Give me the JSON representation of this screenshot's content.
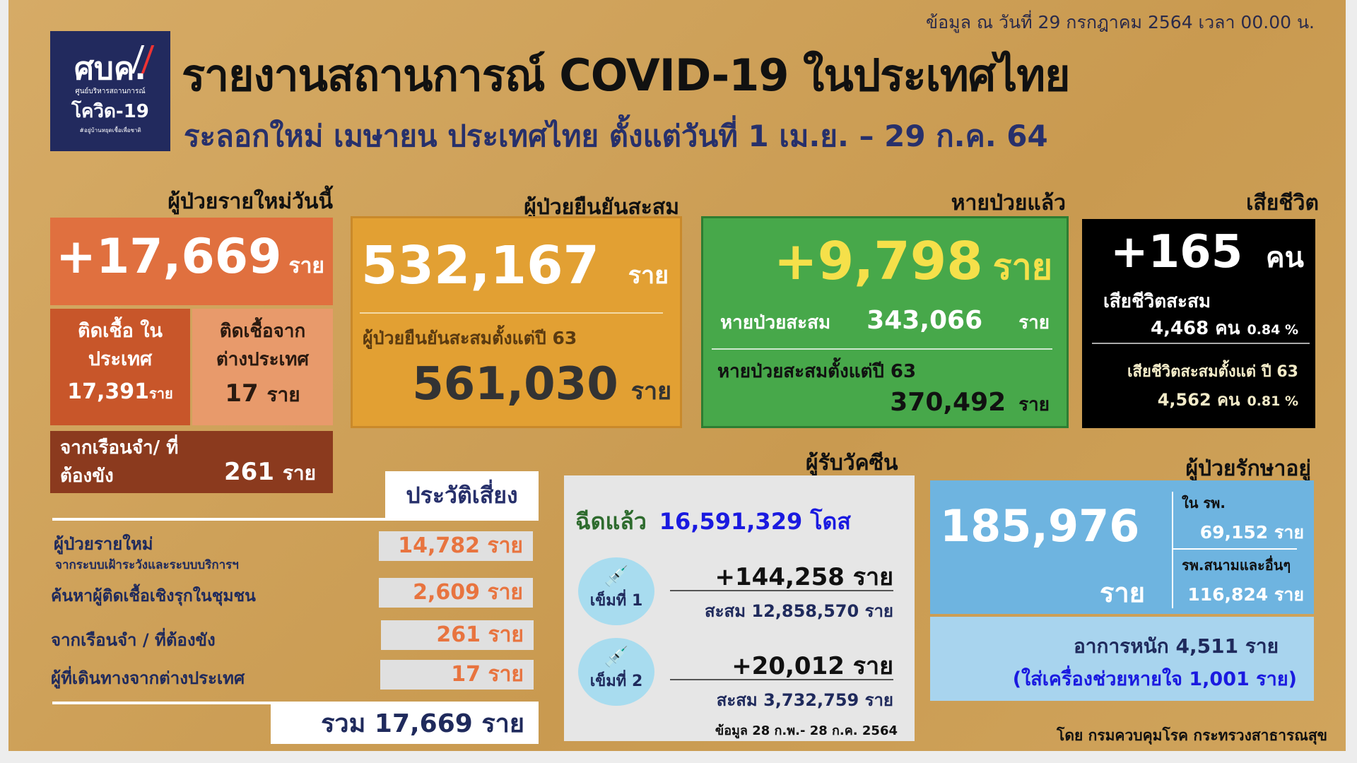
{
  "header": {
    "date": "ข้อมูล ณ วันที่ 29 กรกฎาคม 2564 เวลา 00.00 น.",
    "title": "รายงานสถานการณ์ COVID-19 ในประเทศไทย",
    "subtitle": "ระลอกใหม่ เมษายน ประเทศไทย ตั้งแต่วันที่ 1 เม.ย. – 29 ก.ค. 64",
    "logo": {
      "main": "ศบค.",
      "line1": "ศูนย์บริหารสถานการณ์",
      "line2": "โควิด-19",
      "tagline": "#อยู่บ้านหยุดเชื้อเพื่อชาติ"
    }
  },
  "new_cases": {
    "label": "ผู้ป่วยรายใหม่วันนี้",
    "value": "+17,669",
    "unit": "ราย",
    "domestic_label": "ติดเชื้อ ในประเทศ",
    "domestic_value": "17,391",
    "domestic_unit": "ราย",
    "imported_label": "ติดเชื้อจาก ต่างประเทศ",
    "imported_value": "17",
    "imported_unit": "ราย",
    "prison_label": "จากเรือนจำ/ ที่ต้องขัง",
    "prison_value": "261",
    "prison_unit": "ราย"
  },
  "cumulative": {
    "label": "ผู้ป่วยยืนยันสะสม",
    "value": "532,167",
    "unit": "ราย",
    "since63_label": "ผู้ป่วยยืนยันสะสมตั้งแต่ปี 63",
    "since63_value": "561,030",
    "since63_unit": "ราย"
  },
  "recovered": {
    "label": "หายป่วยแล้ว",
    "value": "+9,798",
    "unit": "ราย",
    "cum_label": "หายป่วยสะสม",
    "cum_value": "343,066",
    "cum_unit": "ราย",
    "since63_label": "หายป่วยสะสมตั้งแต่ปี 63",
    "since63_value": "370,492",
    "since63_unit": "ราย"
  },
  "deaths": {
    "label": "เสียชีวิต",
    "value": "+165",
    "unit": "คน",
    "cum_label": "เสียชีวิตสะสม",
    "cum_value": "4,468 คน",
    "cum_pct": "0.84 %",
    "since63_label": "เสียชีวิตสะสมตั้งแต่ ปี 63",
    "since63_value": "4,562 คน",
    "since63_pct": "0.81 %"
  },
  "risk": {
    "header": "ประวัติเสี่ยง",
    "rows": [
      {
        "label": "ผู้ป่วยรายใหม่",
        "sublabel": "จากระบบเฝ้าระวังและระบบบริการฯ",
        "value": "14,782 ราย"
      },
      {
        "label": "ค้นหาผู้ติดเชื้อเชิงรุกในชุมชน",
        "value": "2,609 ราย"
      },
      {
        "label": "จากเรือนจำ / ที่ต้องขัง",
        "value": "261 ราย"
      },
      {
        "label": "ผู้ที่เดินทางจากต่างประเทศ",
        "value": "17 ราย"
      }
    ],
    "total": "รวม 17,669 ราย"
  },
  "vaccine": {
    "label": "ผู้รับวัคซีน",
    "injected_label": "ฉีดแล้ว",
    "injected_value": "16,591,329 โดส",
    "dose1_label": "เข็มที่ 1",
    "dose1_new": "+144,258 ราย",
    "dose1_cum": "สะสม 12,858,570 ราย",
    "dose2_label": "เข็มที่ 2",
    "dose2_new": "+20,012 ราย",
    "dose2_cum": "สะสม 3,732,759 ราย",
    "note": "ข้อมูล 28 ก.พ.- 28 ก.ค. 2564"
  },
  "treatment": {
    "label": "ผู้ป่วยรักษาอยู่",
    "value": "185,976",
    "unit": "ราย",
    "hospital_label": "ใน รพ.",
    "hospital_value": "69,152 ราย",
    "field_label": "รพ.สนามและอื่นๆ",
    "field_value": "116,824 ราย",
    "severe": "อาการหนัก 4,511 ราย",
    "ventilator": "(ใส่เครื่องช่วยหายใจ 1,001 ราย)"
  },
  "footer": {
    "source": "โดย กรมควบคุมโรค กระทรวงสาธารณสุข"
  },
  "colors": {
    "background": "#d0a45c",
    "new": "#e0703f",
    "domestic": "#c8562a",
    "imported": "#e89a6b",
    "prison": "#8b3a1e",
    "cumulative": "#e2a033",
    "recovered": "#47a84a",
    "deaths": "#000000",
    "treatment": "#6eb4e0",
    "severe": "#a8d4ee",
    "navy": "#27306b"
  }
}
